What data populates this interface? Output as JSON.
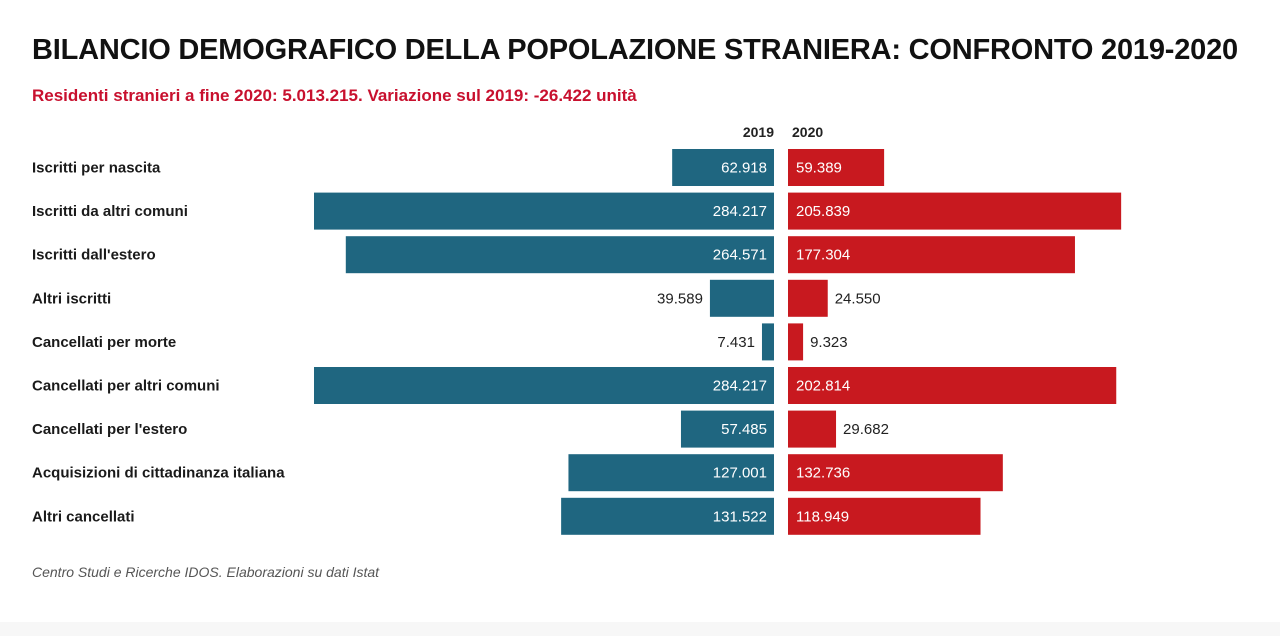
{
  "title": "BILANCIO DEMOGRAFICO DELLA POPOLAZIONE STRANIERA: CONFRONTO 2019-2020",
  "subtitle": "Residenti stranieri a fine 2020: 5.013.215. Variazione sul 2019: -26.422 unità",
  "source": "Centro Studi e Ricerche IDOS. Elaborazioni su dati Istat",
  "colors": {
    "series_2019": "#1f6680",
    "series_2020": "#c8191f"
  },
  "chart_data": {
    "type": "bar",
    "orientation": "horizontal-diverging",
    "categories": [
      "Iscritti per nascita",
      "Iscritti da altri comuni",
      "Iscritti dall'estero",
      "Altri iscritti",
      "Cancellati per morte",
      "Cancellati per altri comuni",
      "Cancellati per l'estero",
      "Acquisizioni di cittadinanza italiana",
      "Altri cancellati"
    ],
    "series": [
      {
        "name": "2019",
        "values": [
          62918,
          284217,
          264571,
          39589,
          7431,
          284217,
          57485,
          127001,
          131522
        ],
        "labels": [
          "62.918",
          "284.217",
          "264.571",
          "39.589",
          "7.431",
          "284.217",
          "57.485",
          "127.001",
          "131.522"
        ]
      },
      {
        "name": "2020",
        "values": [
          59389,
          205839,
          177304,
          24550,
          9323,
          202814,
          29682,
          132736,
          118949
        ],
        "labels": [
          "59.389",
          "205.839",
          "177.304",
          "24.550",
          "9.323",
          "202.814",
          "29.682",
          "132.736",
          "118.949"
        ]
      }
    ]
  }
}
